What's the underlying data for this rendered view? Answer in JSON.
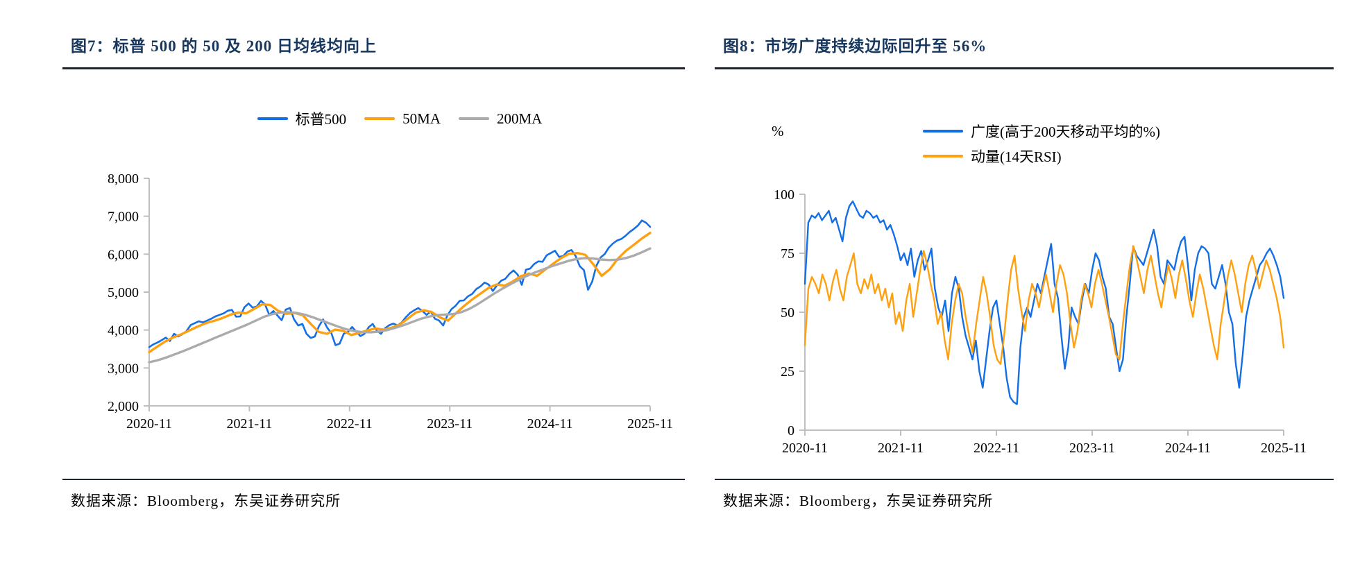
{
  "accent_colors": {
    "title_navy": "#17375E",
    "blue": "#146EE6",
    "orange": "#FFA010",
    "gray": "#ABABAB",
    "axis_gray": "#BFBFBF"
  },
  "panels": [
    {
      "title": "图7：标普 500 的 50 及  200 日均线均向上",
      "source": "数据来源：Bloomberg，东吴证券研究所"
    },
    {
      "title": "图8：市场广度持续边际回升至 56%",
      "source": "数据来源：Bloomberg，东吴证券研究所",
      "unit_label": "%"
    }
  ],
  "chart_data": [
    {
      "type": "line",
      "title": "标普 500 的 50 及 200 日均线均向上",
      "xlabel": "",
      "ylabel": "",
      "ylim": [
        2000,
        8000
      ],
      "yticks": [
        2000,
        3000,
        4000,
        5000,
        6000,
        7000,
        8000
      ],
      "ytick_labels": [
        "2,000",
        "3,000",
        "4,000",
        "5,000",
        "6,000",
        "7,000",
        "8,000"
      ],
      "xticklabels": [
        "2020-11",
        "2021-11",
        "2022-11",
        "2023-11",
        "2024-11",
        "2025-11"
      ],
      "grid": false,
      "legend_position": "top-center",
      "series": [
        {
          "name": "标普500",
          "color": "#146EE6",
          "width": 2.6,
          "values": [
            3550,
            3620,
            3670,
            3730,
            3800,
            3710,
            3900,
            3830,
            3890,
            3970,
            4130,
            4180,
            4230,
            4200,
            4250,
            4300,
            4360,
            4400,
            4440,
            4510,
            4530,
            4350,
            4360,
            4600,
            4700,
            4590,
            4620,
            4770,
            4670,
            4400,
            4500,
            4380,
            4260,
            4540,
            4580,
            4280,
            4120,
            4160,
            3900,
            3790,
            3830,
            4100,
            4280,
            4060,
            3920,
            3600,
            3640,
            3900,
            3950,
            4080,
            3960,
            3840,
            3900,
            4070,
            4160,
            3980,
            3900,
            4050,
            4130,
            4170,
            4120,
            4200,
            4340,
            4450,
            4520,
            4580,
            4500,
            4400,
            4490,
            4300,
            4250,
            4120,
            4380,
            4550,
            4640,
            4770,
            4780,
            4890,
            4950,
            5080,
            5150,
            5250,
            5200,
            5030,
            5180,
            5300,
            5350,
            5480,
            5570,
            5460,
            5190,
            5590,
            5620,
            5740,
            5810,
            5800,
            5970,
            6030,
            6090,
            5930,
            5950,
            6070,
            6110,
            5950,
            5680,
            5580,
            5060,
            5280,
            5690,
            5910,
            6000,
            6170,
            6280,
            6360,
            6400,
            6480,
            6580,
            6660,
            6750,
            6890,
            6830,
            6720
          ]
        },
        {
          "name": "50MA",
          "color": "#FFA010",
          "width": 3.4,
          "values": [
            3420,
            3560,
            3700,
            3810,
            3890,
            3990,
            4090,
            4180,
            4240,
            4310,
            4400,
            4460,
            4440,
            4560,
            4680,
            4660,
            4500,
            4430,
            4450,
            4390,
            4160,
            3950,
            3900,
            4010,
            3980,
            3870,
            3920,
            3990,
            4040,
            4010,
            4060,
            4140,
            4300,
            4460,
            4520,
            4470,
            4330,
            4250,
            4450,
            4640,
            4810,
            4960,
            5110,
            5200,
            5170,
            5280,
            5420,
            5490,
            5430,
            5590,
            5750,
            5900,
            6010,
            6030,
            5980,
            5720,
            5430,
            5600,
            5880,
            6090,
            6250,
            6420,
            6560
          ]
        },
        {
          "name": "200MA",
          "color": "#ABABAB",
          "width": 3.4,
          "values": [
            3150,
            3200,
            3270,
            3350,
            3430,
            3520,
            3610,
            3700,
            3790,
            3880,
            3970,
            4060,
            4150,
            4250,
            4350,
            4420,
            4460,
            4470,
            4450,
            4400,
            4330,
            4250,
            4170,
            4090,
            4020,
            3970,
            3945,
            3940,
            3960,
            4000,
            4060,
            4130,
            4210,
            4290,
            4350,
            4390,
            4405,
            4420,
            4470,
            4560,
            4680,
            4820,
            4960,
            5090,
            5210,
            5320,
            5430,
            5520,
            5600,
            5680,
            5750,
            5820,
            5870,
            5895,
            5885,
            5860,
            5845,
            5855,
            5895,
            5960,
            6050,
            6150
          ]
        }
      ]
    },
    {
      "type": "line",
      "title": "市场广度持续边际回升至 56%",
      "xlabel": "",
      "ylabel": "%",
      "ylim": [
        0,
        100
      ],
      "yticks": [
        0,
        25,
        50,
        75,
        100
      ],
      "ytick_labels": [
        "0",
        "25",
        "50",
        "75",
        "100"
      ],
      "xticklabels": [
        "2020-11",
        "2021-11",
        "2022-11",
        "2023-11",
        "2024-11",
        "2025-11"
      ],
      "grid": false,
      "legend_position": "top-right",
      "series": [
        {
          "name": "广度(高于200天移动平均的%)",
          "color": "#146EE6",
          "width": 2.4,
          "values": [
            62,
            88,
            91,
            90,
            92,
            89,
            91,
            93,
            88,
            90,
            85,
            80,
            90,
            95,
            97,
            94,
            91,
            90,
            93,
            92,
            90,
            91,
            88,
            89,
            85,
            87,
            83,
            78,
            72,
            75,
            70,
            77,
            65,
            72,
            76,
            68,
            72,
            77,
            60,
            52,
            48,
            55,
            42,
            58,
            65,
            60,
            48,
            40,
            35,
            30,
            38,
            25,
            18,
            30,
            42,
            52,
            55,
            45,
            35,
            22,
            14,
            12,
            11,
            35,
            48,
            52,
            48,
            55,
            62,
            58,
            65,
            72,
            79,
            62,
            56,
            40,
            26,
            35,
            52,
            48,
            45,
            55,
            62,
            58,
            68,
            75,
            72,
            65,
            60,
            48,
            45,
            35,
            25,
            30,
            48,
            62,
            78,
            74,
            72,
            70,
            75,
            80,
            85,
            78,
            65,
            62,
            72,
            70,
            68,
            75,
            80,
            82,
            70,
            55,
            68,
            75,
            78,
            77,
            75,
            62,
            60,
            65,
            70,
            62,
            50,
            45,
            28,
            18,
            32,
            48,
            55,
            60,
            65,
            70,
            72,
            75,
            77,
            74,
            70,
            65,
            56
          ]
        },
        {
          "name": "动量(14天RSI)",
          "color": "#FFA010",
          "width": 2.4,
          "values": [
            36,
            60,
            65,
            62,
            58,
            66,
            62,
            55,
            63,
            68,
            60,
            55,
            65,
            70,
            75,
            62,
            58,
            64,
            60,
            66,
            58,
            62,
            55,
            60,
            52,
            58,
            45,
            50,
            42,
            55,
            62,
            48,
            58,
            68,
            76,
            70,
            62,
            55,
            45,
            50,
            38,
            30,
            45,
            55,
            62,
            58,
            48,
            40,
            33,
            45,
            55,
            65,
            58,
            48,
            36,
            30,
            28,
            40,
            55,
            68,
            74,
            60,
            50,
            42,
            55,
            62,
            58,
            52,
            60,
            66,
            58,
            50,
            62,
            70,
            66,
            58,
            45,
            35,
            42,
            55,
            62,
            58,
            52,
            62,
            68,
            62,
            55,
            48,
            40,
            32,
            30,
            45,
            58,
            70,
            78,
            72,
            65,
            58,
            68,
            74,
            66,
            58,
            52,
            62,
            70,
            64,
            56,
            66,
            72,
            64,
            55,
            48,
            58,
            66,
            60,
            52,
            44,
            36,
            30,
            45,
            55,
            65,
            72,
            66,
            58,
            50,
            62,
            70,
            74,
            68,
            60,
            66,
            72,
            68,
            62,
            56,
            48,
            35
          ]
        }
      ]
    }
  ]
}
